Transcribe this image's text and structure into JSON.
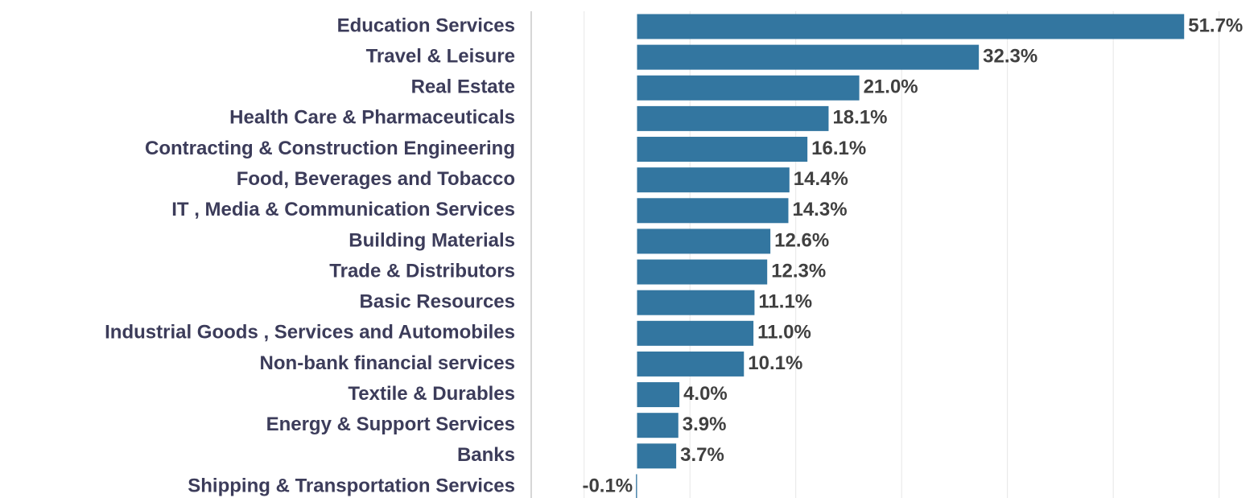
{
  "chart_data": {
    "type": "barh",
    "categories": [
      "Education Services",
      "Travel & Leisure",
      "Real Estate",
      "Health Care & Pharmaceuticals",
      "Contracting & Construction Engineering",
      "Food, Beverages and Tobacco",
      "IT , Media & Communication Services",
      "Building Materials",
      "Trade & Distributors",
      "Basic Resources",
      "Industrial Goods , Services and Automobiles",
      "Non-bank financial services",
      "Textile & Durables",
      "Energy & Support Services",
      "Banks",
      "Shipping & Transportation Services"
    ],
    "values": [
      51.7,
      32.3,
      21.0,
      18.1,
      16.1,
      14.4,
      14.3,
      12.6,
      12.3,
      11.1,
      11.0,
      10.1,
      4.0,
      3.9,
      3.7,
      -0.1
    ],
    "value_labels": [
      "51.7%",
      "32.3%",
      "21.0%",
      "18.1%",
      "16.1%",
      "14.4%",
      "14.3%",
      "12.6%",
      "12.3%",
      "11.1%",
      "11.0%",
      "10.1%",
      "4.0%",
      "3.9%",
      "3.7%",
      "-0.1%"
    ],
    "color": "#3376a0",
    "xlim": [
      -10,
      58.3
    ],
    "gridlines": [
      -5,
      5,
      15,
      25,
      35,
      45,
      55
    ],
    "grid": true
  }
}
